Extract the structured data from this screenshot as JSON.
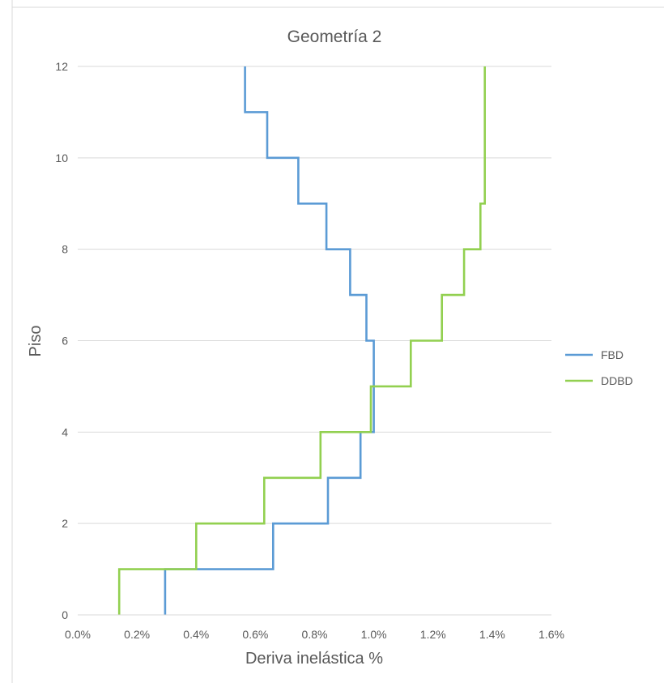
{
  "chart_data": {
    "type": "line",
    "title": "Geometría 2",
    "xlabel": "Deriva inelástica %",
    "ylabel": "Piso",
    "xlim": [
      0,
      1.6
    ],
    "ylim": [
      0,
      12
    ],
    "x_ticks": [
      "0.0%",
      "0.2%",
      "0.4%",
      "0.6%",
      "0.8%",
      "1.0%",
      "1.2%",
      "1.4%",
      "1.6%"
    ],
    "y_ticks": [
      "0",
      "2",
      "4",
      "6",
      "8",
      "10",
      "12"
    ],
    "grid": "horizontal",
    "legend_position": "right",
    "series": [
      {
        "name": "FBD",
        "color": "#5b9bd5",
        "x": [
          0.295,
          0.295,
          0.66,
          0.66,
          0.845,
          0.845,
          0.955,
          0.955,
          1.0,
          1.0,
          0.975,
          0.975,
          0.92,
          0.92,
          0.84,
          0.84,
          0.745,
          0.745,
          0.64,
          0.64,
          0.565,
          0.565
        ],
        "y": [
          0,
          1,
          1,
          2,
          2,
          3,
          3,
          4,
          4,
          6,
          6,
          7,
          7,
          8,
          8,
          9,
          9,
          10,
          10,
          11,
          11,
          12
        ]
      },
      {
        "name": "DDBD",
        "color": "#92d050",
        "x": [
          0.14,
          0.14,
          0.4,
          0.4,
          0.63,
          0.63,
          0.82,
          0.82,
          0.99,
          0.99,
          1.125,
          1.125,
          1.23,
          1.23,
          1.305,
          1.305,
          1.36,
          1.36,
          1.375,
          1.375
        ],
        "y": [
          0,
          1,
          1,
          2,
          2,
          3,
          3,
          4,
          4,
          5,
          5,
          6,
          6,
          7,
          7,
          8,
          8,
          9,
          9,
          12
        ]
      }
    ]
  }
}
